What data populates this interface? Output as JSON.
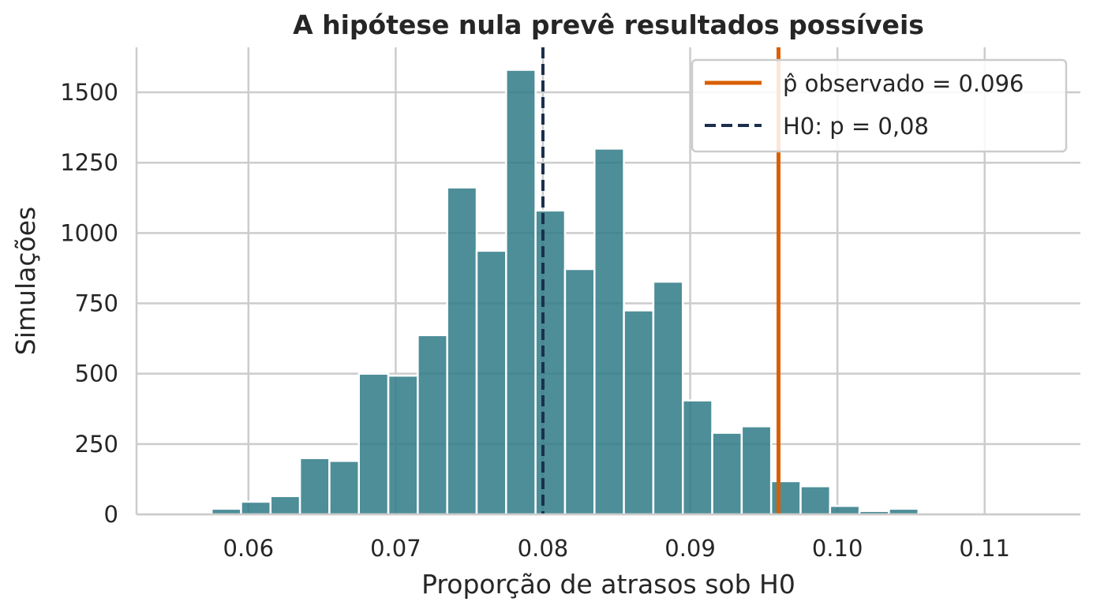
{
  "chart_data": {
    "type": "bar",
    "title": "A hipótese nula prevê resultados possíveis",
    "xlabel": "Proporção de atrasos sob H0",
    "ylabel": "Simulações",
    "xlim": [
      0.0524,
      0.1165
    ],
    "ylim": [
      0,
      1660
    ],
    "xticks": [
      0.06,
      0.07,
      0.08,
      0.09,
      0.1,
      0.11
    ],
    "xtick_labels": [
      "0.06",
      "0.07",
      "0.08",
      "0.09",
      "0.10",
      "0.11"
    ],
    "yticks": [
      0,
      250,
      500,
      750,
      1000,
      1250,
      1500
    ],
    "ytick_labels": [
      "0",
      "250",
      "500",
      "750",
      "1000",
      "1250",
      "1500"
    ],
    "grid": true,
    "bin_width": 0.002,
    "bins": [
      {
        "x0": 0.0575,
        "x1": 0.0595,
        "count": 20
      },
      {
        "x0": 0.0595,
        "x1": 0.0615,
        "count": 45
      },
      {
        "x0": 0.0615,
        "x1": 0.0635,
        "count": 65
      },
      {
        "x0": 0.0635,
        "x1": 0.0655,
        "count": 200
      },
      {
        "x0": 0.0655,
        "x1": 0.0675,
        "count": 190
      },
      {
        "x0": 0.0675,
        "x1": 0.0695,
        "count": 500
      },
      {
        "x0": 0.0695,
        "x1": 0.0715,
        "count": 493
      },
      {
        "x0": 0.0715,
        "x1": 0.0735,
        "count": 637
      },
      {
        "x0": 0.0735,
        "x1": 0.0755,
        "count": 1162
      },
      {
        "x0": 0.0755,
        "x1": 0.0775,
        "count": 937
      },
      {
        "x0": 0.0775,
        "x1": 0.0795,
        "count": 1580
      },
      {
        "x0": 0.0795,
        "x1": 0.0815,
        "count": 1080
      },
      {
        "x0": 0.0815,
        "x1": 0.0835,
        "count": 872
      },
      {
        "x0": 0.0835,
        "x1": 0.0855,
        "count": 1300
      },
      {
        "x0": 0.0855,
        "x1": 0.0875,
        "count": 725
      },
      {
        "x0": 0.0875,
        "x1": 0.0895,
        "count": 827
      },
      {
        "x0": 0.0895,
        "x1": 0.0915,
        "count": 405
      },
      {
        "x0": 0.0915,
        "x1": 0.0935,
        "count": 290
      },
      {
        "x0": 0.0935,
        "x1": 0.0955,
        "count": 313
      },
      {
        "x0": 0.0955,
        "x1": 0.0975,
        "count": 118
      },
      {
        "x0": 0.0975,
        "x1": 0.0995,
        "count": 100
      },
      {
        "x0": 0.0995,
        "x1": 0.1015,
        "count": 30
      },
      {
        "x0": 0.1015,
        "x1": 0.1035,
        "count": 12
      },
      {
        "x0": 0.1035,
        "x1": 0.1055,
        "count": 20
      }
    ],
    "vlines": [
      {
        "name": "p̂ observado = 0.096",
        "x": 0.096,
        "color": "#d95f02",
        "style": "solid"
      },
      {
        "name": "H0: p = 0,08",
        "x": 0.08,
        "color": "#1b2f4d",
        "style": "dashed"
      }
    ],
    "bar_color": "#2e7a86",
    "legend_position": "top-right"
  }
}
